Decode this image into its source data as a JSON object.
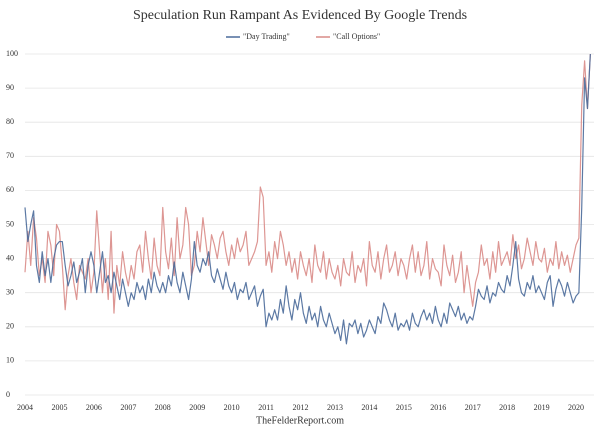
{
  "chart_data": {
    "type": "line",
    "title": "Speculation Run Rampant As Evidenced By Google Trends",
    "footer": "TheFelderReport.com",
    "categories": [
      "2004",
      null,
      null,
      null,
      null,
      null,
      null,
      null,
      null,
      null,
      null,
      null,
      "2005",
      null,
      null,
      null,
      null,
      null,
      null,
      null,
      null,
      null,
      null,
      null,
      "2006",
      null,
      null,
      null,
      null,
      null,
      null,
      null,
      null,
      null,
      null,
      null,
      "2007",
      null,
      null,
      null,
      null,
      null,
      null,
      null,
      null,
      null,
      null,
      null,
      "2008",
      null,
      null,
      null,
      null,
      null,
      null,
      null,
      null,
      null,
      null,
      null,
      "2009",
      null,
      null,
      null,
      null,
      null,
      null,
      null,
      null,
      null,
      null,
      null,
      "2010",
      null,
      null,
      null,
      null,
      null,
      null,
      null,
      null,
      null,
      null,
      null,
      "2011",
      null,
      null,
      null,
      null,
      null,
      null,
      null,
      null,
      null,
      null,
      null,
      "2012",
      null,
      null,
      null,
      null,
      null,
      null,
      null,
      null,
      null,
      null,
      null,
      "2013",
      null,
      null,
      null,
      null,
      null,
      null,
      null,
      null,
      null,
      null,
      null,
      "2014",
      null,
      null,
      null,
      null,
      null,
      null,
      null,
      null,
      null,
      null,
      null,
      "2015",
      null,
      null,
      null,
      null,
      null,
      null,
      null,
      null,
      null,
      null,
      null,
      "2016",
      null,
      null,
      null,
      null,
      null,
      null,
      null,
      null,
      null,
      null,
      null,
      "2017",
      null,
      null,
      null,
      null,
      null,
      null,
      null,
      null,
      null,
      null,
      null,
      "2018",
      null,
      null,
      null,
      null,
      null,
      null,
      null,
      null,
      null,
      null,
      null,
      "2019",
      null,
      null,
      null,
      null,
      null,
      null,
      null,
      null,
      null,
      null,
      null,
      "2020",
      null,
      null,
      null,
      null,
      null
    ],
    "series": [
      {
        "name": "\"Day Trading\"",
        "color": "#4a6a9a",
        "values": [
          55,
          45,
          50,
          54,
          38,
          33,
          42,
          35,
          40,
          33,
          40,
          44,
          45,
          45,
          38,
          32,
          35,
          39,
          33,
          36,
          40,
          30,
          38,
          42,
          38,
          30,
          36,
          42,
          33,
          35,
          30,
          36,
          32,
          28,
          34,
          30,
          26,
          30,
          28,
          33,
          30,
          32,
          28,
          34,
          30,
          36,
          32,
          30,
          33,
          30,
          35,
          32,
          39,
          33,
          30,
          36,
          32,
          28,
          34,
          45,
          38,
          36,
          40,
          38,
          42,
          35,
          33,
          37,
          34,
          31,
          36,
          32,
          30,
          33,
          28,
          31,
          30,
          33,
          28,
          30,
          32,
          26,
          29,
          31,
          20,
          24,
          22,
          25,
          22,
          28,
          24,
          32,
          26,
          22,
          28,
          25,
          30,
          24,
          21,
          26,
          22,
          24,
          20,
          26,
          22,
          20,
          24,
          21,
          18,
          20,
          16,
          22,
          15,
          21,
          20,
          22,
          18,
          21,
          17,
          19,
          22,
          20,
          18,
          23,
          21,
          27,
          25,
          22,
          20,
          24,
          19,
          21,
          20,
          22,
          19,
          24,
          21,
          20,
          23,
          25,
          22,
          24,
          21,
          26,
          22,
          20,
          24,
          21,
          27,
          25,
          23,
          26,
          22,
          24,
          21,
          23,
          22,
          26,
          31,
          29,
          28,
          32,
          27,
          30,
          29,
          33,
          31,
          30,
          35,
          32,
          38,
          45,
          34,
          30,
          29,
          33,
          31,
          35,
          30,
          32,
          30,
          28,
          33,
          35,
          26,
          31,
          34,
          32,
          29,
          33,
          30,
          27,
          29,
          30,
          55,
          93,
          84,
          100
        ]
      },
      {
        "name": "\"Call Options\"",
        "color": "#d98b87",
        "values": [
          36,
          48,
          38,
          52,
          46,
          35,
          40,
          33,
          48,
          44,
          35,
          50,
          48,
          38,
          25,
          35,
          40,
          33,
          28,
          38,
          36,
          34,
          40,
          30,
          36,
          54,
          42,
          30,
          40,
          28,
          48,
          24,
          38,
          32,
          42,
          36,
          32,
          38,
          34,
          42,
          44,
          36,
          48,
          40,
          34,
          46,
          38,
          35,
          55,
          42,
          37,
          46,
          35,
          52,
          40,
          44,
          55,
          50,
          35,
          38,
          48,
          42,
          52,
          45,
          38,
          47,
          44,
          40,
          46,
          48,
          42,
          38,
          44,
          40,
          46,
          42,
          44,
          48,
          38,
          40,
          42,
          45,
          61,
          58,
          38,
          42,
          36,
          45,
          40,
          48,
          44,
          38,
          42,
          36,
          40,
          34,
          42,
          38,
          35,
          40,
          33,
          44,
          38,
          36,
          42,
          34,
          40,
          36,
          34,
          38,
          32,
          40,
          36,
          35,
          42,
          33,
          38,
          36,
          40,
          32,
          45,
          38,
          36,
          42,
          34,
          40,
          44,
          36,
          38,
          42,
          35,
          40,
          38,
          34,
          40,
          44,
          36,
          42,
          35,
          38,
          45,
          34,
          40,
          37,
          36,
          32,
          44,
          38,
          35,
          41,
          33,
          36,
          42,
          30,
          38,
          32,
          26,
          33,
          36,
          44,
          38,
          40,
          34,
          42,
          36,
          45,
          38,
          40,
          42,
          38,
          47,
          40,
          44,
          37,
          40,
          46,
          42,
          38,
          45,
          40,
          39,
          43,
          36,
          40,
          38,
          45,
          37,
          42,
          38,
          41,
          36,
          40,
          44,
          46,
          85,
          98,
          84,
          100
        ]
      }
    ],
    "ylim": [
      0,
      100
    ],
    "yticks": [
      0,
      10,
      20,
      30,
      40,
      50,
      60,
      70,
      80,
      90,
      100
    ],
    "grid": true
  }
}
